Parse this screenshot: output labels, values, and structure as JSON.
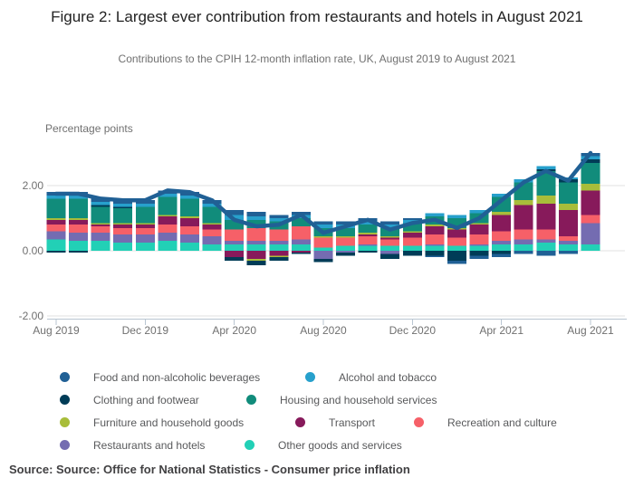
{
  "figure": {
    "source": "Source: Source: Office for National Statistics - Consumer price inflation"
  },
  "chart_data": {
    "type": "bar",
    "variant": "stacked-bar-with-line",
    "title": "Figure 2: Largest ever contribution from restaurants and hotels in August 2021",
    "subtitle": "Contributions to the CPIH 12-month inflation rate, UK, August 2019 to August 2021",
    "ylabel": "Percentage points",
    "xlabel": "",
    "ylim": [
      -2.1,
      3.4
    ],
    "grid": true,
    "legend_position": "bottom",
    "y_ticks": [
      {
        "label": "2.00",
        "value": 2
      },
      {
        "label": "0.00",
        "value": 0
      },
      {
        "label": "-2.00",
        "value": -2
      }
    ],
    "x_ticks": [
      {
        "label": "Aug 2019",
        "index": 0
      },
      {
        "label": "Dec 2019",
        "index": 4
      },
      {
        "label": "Apr 2020",
        "index": 8
      },
      {
        "label": "Aug 2020",
        "index": 12
      },
      {
        "label": "Dec 2020",
        "index": 16
      },
      {
        "label": "Apr 2021",
        "index": 20
      },
      {
        "label": "Aug 2021",
        "index": 24
      }
    ],
    "categories": [
      "Aug 2019",
      "Sep 2019",
      "Oct 2019",
      "Nov 2019",
      "Dec 2019",
      "Jan 2020",
      "Feb 2020",
      "Mar 2020",
      "Apr 2020",
      "May 2020",
      "Jun 2020",
      "Jul 2020",
      "Aug 2020",
      "Sep 2020",
      "Oct 2020",
      "Nov 2020",
      "Dec 2020",
      "Jan 2021",
      "Feb 2021",
      "Mar 2021",
      "Apr 2021",
      "May 2021",
      "Jun 2021",
      "Jul 2021",
      "Aug 2021"
    ],
    "series": [
      {
        "id": "food",
        "name": "Food and non-alcoholic beverages",
        "color": "#206095",
        "values": [
          0.1,
          0.1,
          0.1,
          0.1,
          0.1,
          0.1,
          0.1,
          0.1,
          0.15,
          0.15,
          0.1,
          0.1,
          0.1,
          0.1,
          0.1,
          0.1,
          0.05,
          -0.05,
          -0.1,
          -0.1,
          -0.1,
          -0.1,
          -0.15,
          -0.1,
          0.1
        ]
      },
      {
        "id": "alcohol",
        "name": "Alcohol and tobacco",
        "color": "#27A0CC",
        "values": [
          0.1,
          0.1,
          0.1,
          0.1,
          0.1,
          0.1,
          0.1,
          0.1,
          0.15,
          0.1,
          0.1,
          0.1,
          0.1,
          0.1,
          0.1,
          0.1,
          0.1,
          0.1,
          0.1,
          0.1,
          0.1,
          0.1,
          0.1,
          0.05,
          0.1
        ]
      },
      {
        "id": "clothing",
        "name": "Clothing and footwear",
        "color": "#003C57",
        "values": [
          -0.05,
          -0.05,
          0.05,
          0.05,
          0.0,
          0.0,
          0.0,
          0.0,
          -0.1,
          -0.15,
          -0.1,
          -0.05,
          -0.1,
          -0.1,
          -0.05,
          -0.15,
          -0.15,
          -0.15,
          -0.3,
          -0.15,
          -0.1,
          0.0,
          0.05,
          0.1,
          0.1
        ]
      },
      {
        "id": "housing",
        "name": "Housing and household services",
        "color": "#118C7B",
        "values": [
          0.6,
          0.6,
          0.5,
          0.45,
          0.5,
          0.55,
          0.55,
          0.5,
          0.3,
          0.25,
          0.25,
          0.25,
          0.25,
          0.25,
          0.25,
          0.25,
          0.25,
          0.25,
          0.3,
          0.3,
          0.45,
          0.55,
          0.75,
          0.65,
          0.65
        ]
      },
      {
        "id": "furniture",
        "name": "Furniture and household goods",
        "color": "#A8BD3A",
        "values": [
          0.05,
          0.05,
          0.05,
          0.05,
          0.05,
          0.05,
          0.05,
          0.05,
          0.0,
          -0.05,
          -0.05,
          0.0,
          0.05,
          0.05,
          0.05,
          0.05,
          0.05,
          0.05,
          0.05,
          0.05,
          0.1,
          0.15,
          0.25,
          0.2,
          0.2
        ]
      },
      {
        "id": "transport",
        "name": "Transport",
        "color": "#871A5B",
        "values": [
          0.15,
          0.15,
          0.05,
          0.1,
          0.1,
          0.25,
          0.25,
          0.15,
          -0.2,
          -0.25,
          -0.15,
          -0.05,
          0.0,
          0.0,
          0.05,
          0.05,
          0.15,
          0.25,
          0.25,
          0.3,
          0.5,
          0.75,
          0.8,
          0.8,
          0.75
        ]
      },
      {
        "id": "recreation",
        "name": "Recreation and culture",
        "color": "#F66068",
        "values": [
          0.2,
          0.25,
          0.2,
          0.2,
          0.2,
          0.25,
          0.25,
          0.2,
          0.35,
          0.4,
          0.35,
          0.4,
          0.3,
          0.25,
          0.25,
          0.2,
          0.25,
          0.3,
          0.25,
          0.3,
          0.3,
          0.3,
          0.3,
          0.15,
          0.25
        ]
      },
      {
        "id": "restaurants",
        "name": "Restaurants and hotels",
        "color": "#746CB1",
        "values": [
          0.25,
          0.25,
          0.25,
          0.25,
          0.25,
          0.25,
          0.25,
          0.25,
          0.1,
          0.1,
          0.1,
          0.15,
          -0.25,
          -0.05,
          0.05,
          -0.1,
          0.0,
          0.05,
          0.0,
          0.05,
          0.1,
          0.15,
          0.1,
          0.1,
          0.65
        ]
      },
      {
        "id": "other",
        "name": "Other goods and services",
        "color": "#22D0B6",
        "values": [
          0.35,
          0.3,
          0.3,
          0.25,
          0.25,
          0.3,
          0.25,
          0.2,
          0.2,
          0.2,
          0.2,
          0.2,
          0.1,
          0.15,
          0.15,
          0.15,
          0.15,
          0.15,
          0.15,
          0.15,
          0.2,
          0.2,
          0.25,
          0.2,
          0.2
        ]
      }
    ],
    "line": {
      "name": "CPIH 12-month inflation rate",
      "color": "#206095",
      "values": [
        1.75,
        1.75,
        1.6,
        1.55,
        1.55,
        1.85,
        1.8,
        1.55,
        0.95,
        0.75,
        0.8,
        1.1,
        0.55,
        0.75,
        0.95,
        0.65,
        0.85,
        0.95,
        0.7,
        1.0,
        1.55,
        2.1,
        2.45,
        2.15,
        3.0
      ]
    }
  }
}
